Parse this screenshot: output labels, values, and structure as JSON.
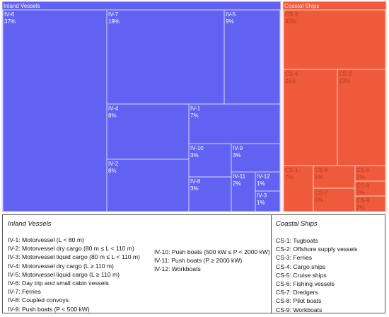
{
  "chart_data": {
    "type": "treemap",
    "groups": [
      {
        "name": "Inland Vessels",
        "color": "#6161f2",
        "stroke": "#d9d9ff",
        "text_color": "#ffffff",
        "items": [
          {
            "code": "IV-6",
            "pct": "37%",
            "value": 37
          },
          {
            "code": "IV-7",
            "pct": "19%",
            "value": 19
          },
          {
            "code": "IV-5",
            "pct": "9%",
            "value": 9
          },
          {
            "code": "IV-4",
            "pct": "8%",
            "value": 8
          },
          {
            "code": "IV-1",
            "pct": "7%",
            "value": 7
          },
          {
            "code": "IV-2",
            "pct": "8%",
            "value": 8
          },
          {
            "code": "IV-10",
            "pct": "3%",
            "value": 3
          },
          {
            "code": "IV-9",
            "pct": "3%",
            "value": 3
          },
          {
            "code": "IV-8",
            "pct": "3%",
            "value": 3
          },
          {
            "code": "IV-11",
            "pct": "2%",
            "value": 2
          },
          {
            "code": "IV-12",
            "pct": "1%",
            "value": 1
          },
          {
            "code": "IV-3",
            "pct": "1%",
            "value": 1
          }
        ]
      },
      {
        "name": "Coastal Ships",
        "color": "#ef5a3d",
        "stroke": "#ffd2c4",
        "text_color": "#b53a22",
        "items": [
          {
            "code": "CS-3",
            "pct": "30%",
            "value": 30
          },
          {
            "code": "CS-4",
            "pct": "25%",
            "value": 25
          },
          {
            "code": "CS-2",
            "pct": "23%",
            "value": 23
          },
          {
            "code": "CS-1",
            "pct": "7%",
            "value": 7
          },
          {
            "code": "CS-6",
            "pct": "5%",
            "value": 5
          },
          {
            "code": "CS-7",
            "pct": "5%",
            "value": 5
          },
          {
            "code": "CS-5",
            "pct": "2%",
            "value": 2
          },
          {
            "code": "CS-8",
            "pct": "2%",
            "value": 2
          },
          {
            "code": "CS-9",
            "pct": "2%",
            "value": 2
          }
        ]
      }
    ]
  },
  "legend": {
    "inland_heading": "Inland Vessels",
    "coastal_heading": "Coastal Ships",
    "inland_col1": [
      "IV-1: Motorvessel (L < 80 m)",
      "IV-2: Motorvessel dry cargo (80 m ≤ L < 110 m)",
      "IV-3: Motorvessel liquid cargo (80 m ≤ L < 110 m)",
      "IV-4: Motorvessel dry cargo (L ≥ 110 m)",
      "IV-5: Motorvessel liquid cargo (L ≥ 110 m)",
      "IV-6: Day trip and small cabin vessels",
      "IV-7: Ferries",
      "IV-8: Coupled convoys",
      "IV-9: Push boats (P < 500 kW)"
    ],
    "inland_col2": [
      "IV-10: Push boats (500 kW ≤ P < 2000 kW)",
      "IV-11: Push boats (P ≥ 2000 kW)",
      "IV-12: Workboats"
    ],
    "coastal_col": [
      "CS-1: Tugboats",
      "CS-2: Offshore supply vessels",
      "CS-3: Ferries",
      "CS-4: Cargo ships",
      "CS-5: Cruise ships",
      "CS-6: Fishing vessels",
      "CS-7: Dredgers",
      "CS-8: Pilot boats",
      "CS-9: Workboats"
    ]
  }
}
